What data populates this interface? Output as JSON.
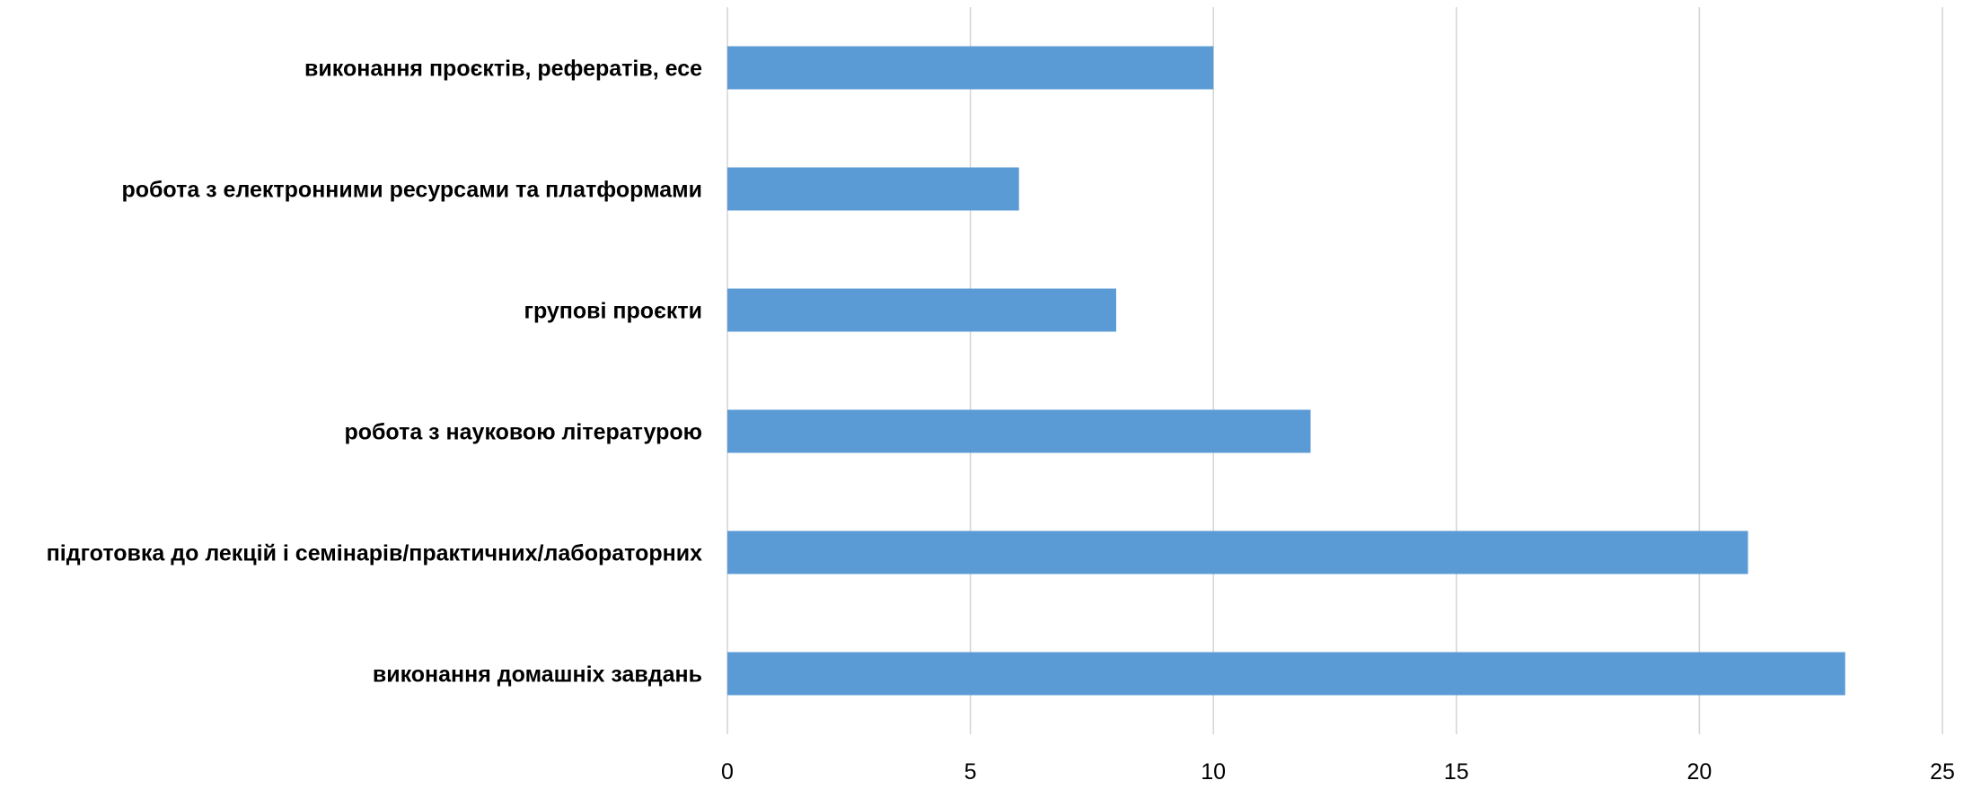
{
  "chart_data": {
    "type": "bar",
    "orientation": "horizontal",
    "title": "",
    "xlabel": "",
    "ylabel": "",
    "categories": [
      "виконання проєктів, рефератів, есе",
      "робота з електронними ресурсами та платформами",
      "групові проєкти",
      "робота з науковою літературою",
      "підготовка до лекцій і семінарів/практичних/лабораторних",
      "виконання домашніх завдань"
    ],
    "values": [
      10,
      6,
      8,
      12,
      21,
      23
    ],
    "xlim": [
      0,
      25
    ],
    "xticks": [
      0,
      5,
      10,
      15,
      20,
      25
    ],
    "grid": true,
    "legend": "none",
    "colors": {
      "bar": "#5b9bd5",
      "grid": "#d4d4d4",
      "text": "#000000"
    }
  }
}
